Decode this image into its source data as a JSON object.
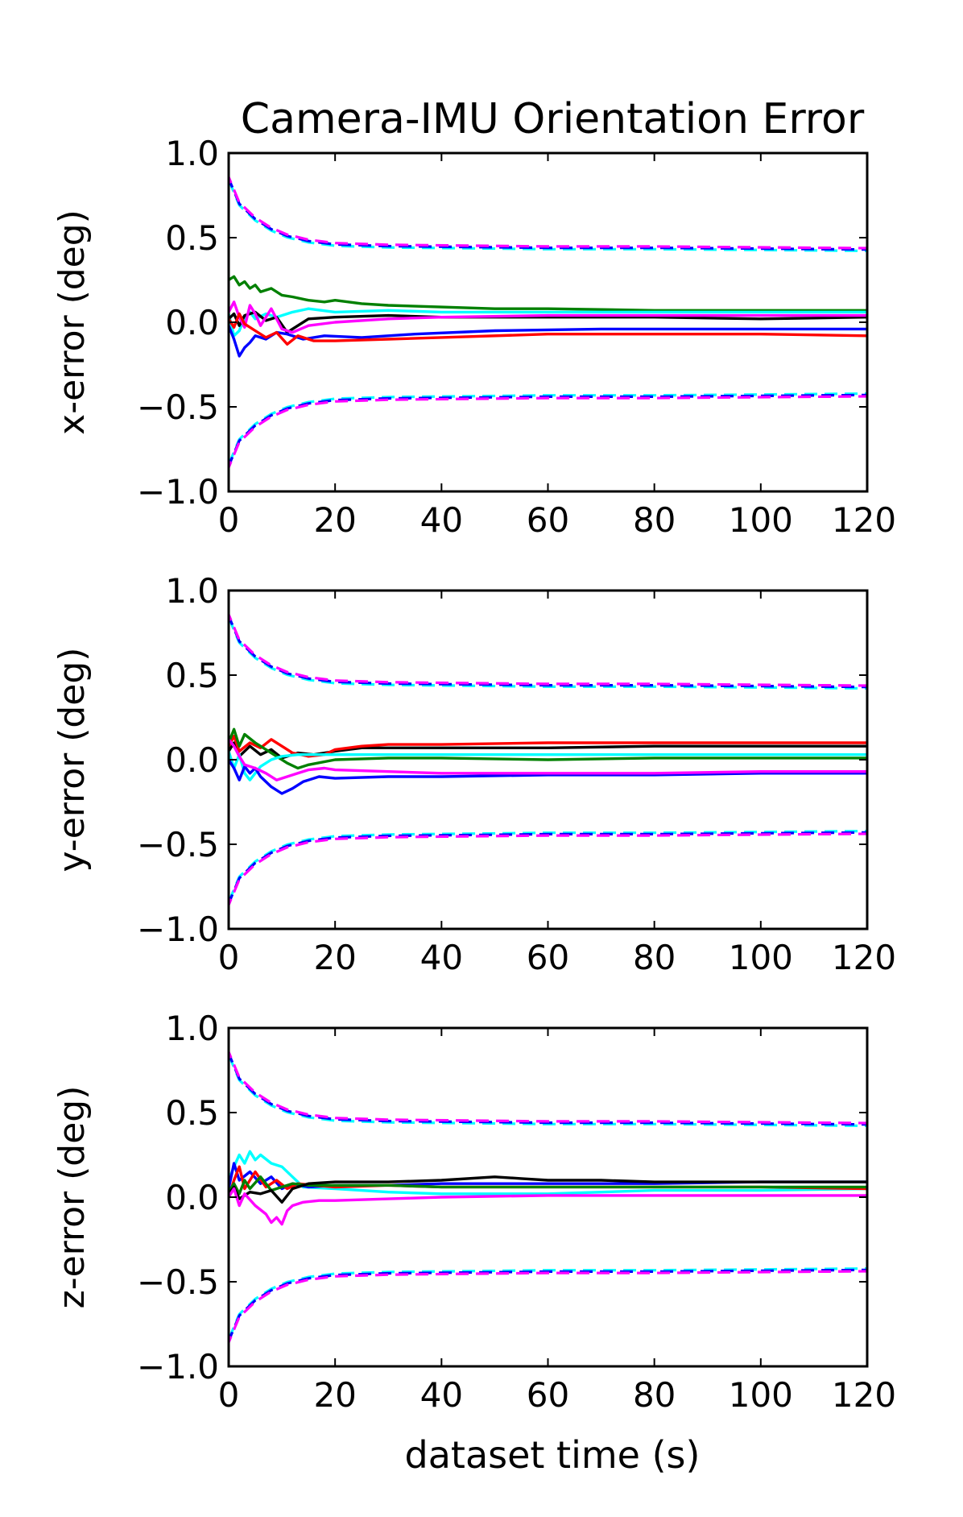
{
  "chart_data": {
    "title": "Camera-IMU Orientation Error",
    "xlabel": "dataset time (s)",
    "xlim": [
      0,
      120
    ],
    "ylim": [
      -1.0,
      1.0
    ],
    "xticks": [
      "0",
      "20",
      "40",
      "60",
      "80",
      "100",
      "120"
    ],
    "yticks": [
      "1.0",
      "0.5",
      "0.0",
      "−0.5",
      "−1.0"
    ],
    "colors": {
      "black": "#000000",
      "red": "#ff0000",
      "green": "#008000",
      "blue": "#0000ff",
      "cyan": "#00ffff",
      "magenta": "#ff00ff"
    },
    "subplots": [
      {
        "type": "line",
        "ylabel": "x-error (deg)",
        "bounds": {
          "x": [
            0,
            2,
            5,
            8,
            11,
            15,
            20,
            30,
            45,
            60,
            80,
            100,
            120
          ],
          "upper": [
            0.85,
            0.7,
            0.61,
            0.55,
            0.51,
            0.48,
            0.46,
            0.45,
            0.445,
            0.44,
            0.44,
            0.435,
            0.43
          ],
          "lower": [
            -0.85,
            -0.7,
            -0.61,
            -0.55,
            -0.51,
            -0.48,
            -0.46,
            -0.45,
            -0.445,
            -0.44,
            -0.44,
            -0.435,
            -0.43
          ],
          "series": [
            {
              "name": "cyan-bound",
              "color": "cyan",
              "offset": -0.008
            },
            {
              "name": "blue-bound",
              "color": "blue",
              "offset": 0.0
            },
            {
              "name": "magenta-bound",
              "color": "magenta",
              "offset": 0.008
            }
          ]
        },
        "series": [
          {
            "name": "green",
            "color": "green",
            "x": [
              0,
              1,
              2,
              3,
              4,
              5,
              6,
              8,
              10,
              12,
              15,
              18,
              20,
              25,
              30,
              40,
              50,
              60,
              80,
              100,
              120
            ],
            "y": [
              0.25,
              0.27,
              0.22,
              0.24,
              0.2,
              0.22,
              0.18,
              0.2,
              0.16,
              0.15,
              0.13,
              0.12,
              0.13,
              0.11,
              0.1,
              0.09,
              0.08,
              0.08,
              0.07,
              0.07,
              0.07
            ]
          },
          {
            "name": "cyan",
            "color": "cyan",
            "x": [
              0,
              1,
              2,
              3,
              4,
              5,
              7,
              9,
              12,
              15,
              20,
              30,
              40,
              60,
              80,
              100,
              120
            ],
            "y": [
              0.05,
              -0.08,
              -0.05,
              0.03,
              0.06,
              0.02,
              0.05,
              0.03,
              0.06,
              0.08,
              0.06,
              0.07,
              0.06,
              0.06,
              0.06,
              0.06,
              0.06
            ]
          },
          {
            "name": "black",
            "color": "black",
            "x": [
              0,
              1,
              2,
              3,
              5,
              7,
              9,
              11,
              13,
              15,
              20,
              30,
              40,
              60,
              80,
              100,
              120
            ],
            "y": [
              0.02,
              0.05,
              -0.02,
              0.04,
              0.06,
              0.01,
              0.03,
              -0.06,
              -0.02,
              0.02,
              0.03,
              0.04,
              0.03,
              0.03,
              0.03,
              0.02,
              0.03
            ]
          },
          {
            "name": "magenta",
            "color": "magenta",
            "x": [
              0,
              1,
              2,
              3,
              4,
              5,
              6,
              8,
              10,
              12,
              15,
              20,
              30,
              40,
              60,
              80,
              100,
              120
            ],
            "y": [
              0.06,
              0.12,
              0.03,
              -0.03,
              0.1,
              0.05,
              -0.02,
              0.08,
              -0.04,
              -0.06,
              -0.02,
              0.0,
              0.02,
              0.03,
              0.04,
              0.04,
              0.04,
              0.04
            ]
          },
          {
            "name": "blue",
            "color": "blue",
            "x": [
              0,
              1,
              2,
              3,
              4,
              5,
              7,
              9,
              11,
              14,
              18,
              25,
              35,
              50,
              70,
              90,
              110,
              120
            ],
            "y": [
              -0.02,
              -0.1,
              -0.2,
              -0.15,
              -0.12,
              -0.08,
              -0.1,
              -0.06,
              -0.07,
              -0.1,
              -0.08,
              -0.09,
              -0.07,
              -0.05,
              -0.04,
              -0.04,
              -0.04,
              -0.04
            ]
          },
          {
            "name": "red",
            "color": "red",
            "x": [
              0,
              1,
              2,
              3,
              5,
              7,
              9,
              11,
              13,
              16,
              20,
              30,
              40,
              60,
              80,
              100,
              120
            ],
            "y": [
              0.02,
              -0.03,
              0.05,
              -0.01,
              -0.05,
              -0.09,
              -0.06,
              -0.13,
              -0.08,
              -0.11,
              -0.11,
              -0.1,
              -0.09,
              -0.07,
              -0.07,
              -0.07,
              -0.08
            ]
          }
        ]
      },
      {
        "type": "line",
        "ylabel": "y-error (deg)",
        "bounds": {
          "x": [
            0,
            2,
            5,
            8,
            11,
            15,
            20,
            30,
            45,
            60,
            80,
            100,
            120
          ],
          "upper": [
            0.85,
            0.7,
            0.61,
            0.55,
            0.51,
            0.48,
            0.46,
            0.45,
            0.445,
            0.44,
            0.44,
            0.435,
            0.43
          ],
          "lower": [
            -0.85,
            -0.7,
            -0.61,
            -0.55,
            -0.51,
            -0.48,
            -0.46,
            -0.45,
            -0.445,
            -0.44,
            -0.44,
            -0.435,
            -0.43
          ],
          "series": [
            {
              "name": "cyan-bound",
              "color": "cyan",
              "offset": -0.008
            },
            {
              "name": "blue-bound",
              "color": "blue",
              "offset": 0.0
            },
            {
              "name": "magenta-bound",
              "color": "magenta",
              "offset": 0.008
            }
          ]
        },
        "series": [
          {
            "name": "black",
            "color": "black",
            "x": [
              0,
              1,
              2,
              4,
              6,
              8,
              10,
              13,
              16,
              20,
              25,
              30,
              40,
              60,
              80,
              100,
              120
            ],
            "y": [
              0.05,
              0.1,
              0.02,
              0.08,
              0.03,
              0.06,
              0.01,
              0.04,
              0.03,
              0.05,
              0.07,
              0.07,
              0.07,
              0.07,
              0.08,
              0.08,
              0.08
            ]
          },
          {
            "name": "red",
            "color": "red",
            "x": [
              0,
              1,
              2,
              4,
              6,
              8,
              10,
              12,
              15,
              18,
              20,
              25,
              30,
              40,
              60,
              80,
              100,
              120
            ],
            "y": [
              0.08,
              0.14,
              0.05,
              0.1,
              0.07,
              0.12,
              0.08,
              0.04,
              0.02,
              0.03,
              0.06,
              0.08,
              0.09,
              0.09,
              0.1,
              0.1,
              0.1,
              0.1
            ]
          },
          {
            "name": "green",
            "color": "green",
            "x": [
              0,
              1,
              2,
              3,
              5,
              7,
              9,
              11,
              13,
              15,
              20,
              30,
              40,
              60,
              80,
              100,
              120
            ],
            "y": [
              0.1,
              0.18,
              0.08,
              0.15,
              0.1,
              0.06,
              0.02,
              -0.02,
              -0.05,
              -0.03,
              0.0,
              0.01,
              0.01,
              0.0,
              0.01,
              0.01,
              0.01
            ]
          },
          {
            "name": "cyan",
            "color": "cyan",
            "x": [
              0,
              1,
              2,
              3,
              4,
              6,
              8,
              10,
              13,
              16,
              20,
              30,
              40,
              60,
              80,
              100,
              120
            ],
            "y": [
              0.05,
              -0.05,
              0.03,
              -0.08,
              -0.12,
              -0.04,
              0.0,
              0.02,
              0.03,
              0.03,
              0.03,
              0.03,
              0.03,
              0.03,
              0.03,
              0.03,
              0.03
            ]
          },
          {
            "name": "blue",
            "color": "blue",
            "x": [
              0,
              1,
              2,
              3,
              4,
              5,
              6,
              8,
              10,
              12,
              14,
              17,
              20,
              30,
              40,
              60,
              80,
              100,
              120
            ],
            "y": [
              0.0,
              -0.05,
              -0.12,
              -0.04,
              -0.08,
              -0.05,
              -0.1,
              -0.16,
              -0.2,
              -0.17,
              -0.13,
              -0.1,
              -0.11,
              -0.1,
              -0.1,
              -0.09,
              -0.09,
              -0.08,
              -0.08
            ]
          },
          {
            "name": "magenta",
            "color": "magenta",
            "x": [
              0,
              1,
              2,
              3,
              5,
              7,
              9,
              11,
              13,
              15,
              18,
              20,
              30,
              40,
              60,
              80,
              100,
              120
            ],
            "y": [
              0.12,
              0.08,
              0.02,
              -0.03,
              -0.05,
              -0.08,
              -0.12,
              -0.1,
              -0.08,
              -0.06,
              -0.05,
              -0.06,
              -0.07,
              -0.08,
              -0.08,
              -0.08,
              -0.07,
              -0.07
            ]
          }
        ]
      },
      {
        "type": "line",
        "ylabel": "z-error (deg)",
        "bounds": {
          "x": [
            0,
            2,
            5,
            8,
            11,
            15,
            20,
            30,
            45,
            60,
            80,
            100,
            120
          ],
          "upper": [
            0.85,
            0.7,
            0.61,
            0.55,
            0.51,
            0.48,
            0.46,
            0.45,
            0.445,
            0.44,
            0.44,
            0.435,
            0.43
          ],
          "lower": [
            -0.85,
            -0.7,
            -0.61,
            -0.55,
            -0.51,
            -0.48,
            -0.46,
            -0.45,
            -0.445,
            -0.44,
            -0.44,
            -0.435,
            -0.43
          ],
          "series": [
            {
              "name": "cyan-bound",
              "color": "cyan",
              "offset": -0.008
            },
            {
              "name": "blue-bound",
              "color": "blue",
              "offset": 0.0
            },
            {
              "name": "magenta-bound",
              "color": "magenta",
              "offset": 0.008
            }
          ]
        },
        "series": [
          {
            "name": "cyan",
            "color": "cyan",
            "x": [
              0,
              1,
              2,
              3,
              4,
              5,
              6,
              8,
              10,
              12,
              14,
              20,
              30,
              40,
              60,
              80,
              100,
              120
            ],
            "y": [
              0.1,
              0.18,
              0.25,
              0.2,
              0.27,
              0.22,
              0.25,
              0.2,
              0.18,
              0.12,
              0.06,
              0.05,
              0.03,
              0.02,
              0.02,
              0.04,
              0.04,
              0.05
            ]
          },
          {
            "name": "blue",
            "color": "blue",
            "x": [
              0,
              1,
              2,
              4,
              6,
              8,
              10,
              12,
              15,
              20,
              30,
              40,
              60,
              80,
              100,
              120
            ],
            "y": [
              0.05,
              0.2,
              0.1,
              0.15,
              0.08,
              0.12,
              0.05,
              0.08,
              0.06,
              0.07,
              0.07,
              0.08,
              0.08,
              0.08,
              0.09,
              0.09
            ]
          },
          {
            "name": "red",
            "color": "red",
            "x": [
              0,
              1,
              2,
              3,
              5,
              7,
              9,
              11,
              13,
              16,
              20,
              30,
              40,
              60,
              80,
              100,
              120
            ],
            "y": [
              0.0,
              0.1,
              0.18,
              0.05,
              0.15,
              0.06,
              0.1,
              0.05,
              0.08,
              0.07,
              0.06,
              0.07,
              0.06,
              0.06,
              0.06,
              0.06,
              0.05
            ]
          },
          {
            "name": "green",
            "color": "green",
            "x": [
              0,
              1,
              2,
              3,
              4,
              6,
              8,
              10,
              12,
              15,
              20,
              30,
              40,
              60,
              80,
              100,
              120
            ],
            "y": [
              0.03,
              0.08,
              0.02,
              0.1,
              0.05,
              0.12,
              0.04,
              0.06,
              0.08,
              0.07,
              0.07,
              0.07,
              0.06,
              0.06,
              0.06,
              0.06,
              0.06
            ]
          },
          {
            "name": "black",
            "color": "black",
            "x": [
              0,
              1,
              2,
              4,
              6,
              8,
              10,
              12,
              15,
              20,
              30,
              40,
              50,
              55,
              60,
              70,
              80,
              100,
              120
            ],
            "y": [
              0.02,
              0.06,
              -0.01,
              0.03,
              0.02,
              0.04,
              -0.03,
              0.05,
              0.08,
              0.09,
              0.09,
              0.1,
              0.12,
              0.11,
              0.1,
              0.1,
              0.09,
              0.09,
              0.09
            ]
          },
          {
            "name": "magenta",
            "color": "magenta",
            "x": [
              0,
              1,
              2,
              3,
              5,
              7,
              8,
              9,
              10,
              11,
              12,
              14,
              17,
              20,
              30,
              40,
              60,
              80,
              100,
              120
            ],
            "y": [
              0.0,
              0.05,
              -0.05,
              0.02,
              -0.05,
              -0.1,
              -0.15,
              -0.12,
              -0.16,
              -0.08,
              -0.05,
              -0.03,
              -0.02,
              -0.02,
              -0.01,
              0.0,
              0.01,
              0.01,
              0.01,
              0.01
            ]
          }
        ]
      }
    ]
  }
}
